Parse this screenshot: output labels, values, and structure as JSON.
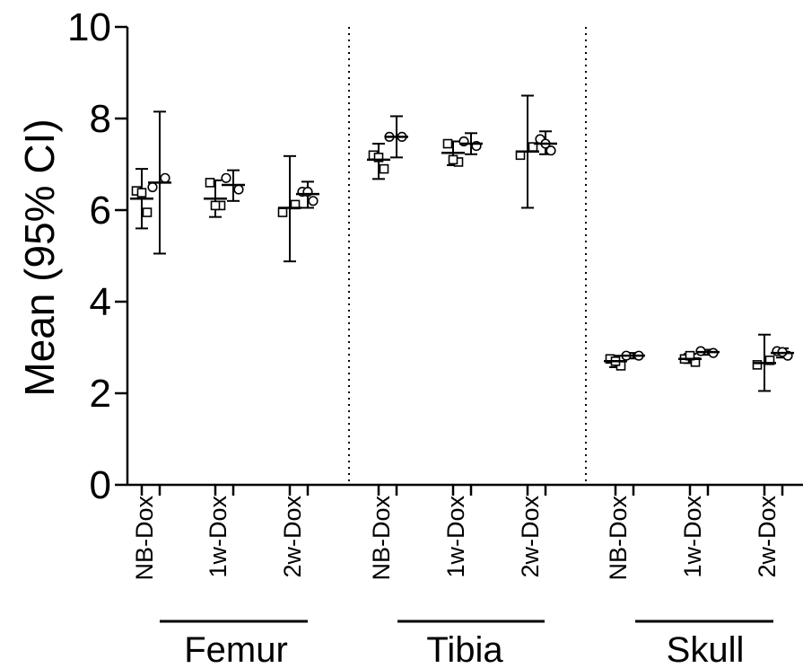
{
  "chart_data": {
    "type": "scatter",
    "ylabel": "Mean (95% CI)",
    "ylim": [
      0,
      10
    ],
    "yticks": [
      "0",
      "2",
      "4",
      "6",
      "8",
      "10"
    ],
    "bones": [
      "Femur",
      "Tibia",
      "Skull"
    ],
    "conditions": [
      "NB-Dox",
      "1w-Dox",
      "2w-Dox"
    ],
    "series": [
      {
        "bone": "Femur",
        "groups": [
          {
            "condition": "NB-Dox",
            "marker": "square",
            "mean": 6.25,
            "ci": [
              5.6,
              6.9
            ],
            "points": [
              6.42,
              5.95,
              6.38
            ]
          },
          {
            "condition": "NB-Dox",
            "marker": "circle",
            "mean": 6.6,
            "ci": [
              5.05,
              8.15
            ],
            "points": [
              6.5,
              6.7
            ]
          },
          {
            "condition": "1w-Dox",
            "marker": "square",
            "mean": 6.25,
            "ci": [
              5.85,
              6.65
            ],
            "points": [
              6.6,
              6.1,
              6.1
            ]
          },
          {
            "condition": "1w-Dox",
            "marker": "circle",
            "mean": 6.55,
            "ci": [
              6.2,
              6.87
            ],
            "points": [
              6.7,
              6.45
            ]
          },
          {
            "condition": "2w-Dox",
            "marker": "square",
            "mean": 6.05,
            "ci": [
              4.88,
              7.18
            ],
            "points": [
              5.95,
              6.12
            ]
          },
          {
            "condition": "2w-Dox",
            "marker": "circle",
            "mean": 6.35,
            "ci": [
              6.05,
              6.62
            ],
            "points": [
              6.4,
              6.2,
              6.4
            ]
          }
        ]
      },
      {
        "bone": "Tibia",
        "groups": [
          {
            "condition": "NB-Dox",
            "marker": "square",
            "mean": 7.1,
            "ci": [
              6.68,
              7.45
            ],
            "points": [
              7.2,
              6.9,
              7.15
            ]
          },
          {
            "condition": "NB-Dox",
            "marker": "circle",
            "mean": 7.6,
            "ci": [
              7.15,
              8.05
            ],
            "points": [
              7.6,
              7.6
            ]
          },
          {
            "condition": "1w-Dox",
            "marker": "square",
            "mean": 7.25,
            "ci": [
              6.98,
              7.5
            ],
            "points": [
              7.45,
              7.05,
              7.1
            ]
          },
          {
            "condition": "1w-Dox",
            "marker": "circle",
            "mean": 7.45,
            "ci": [
              7.22,
              7.68
            ],
            "points": [
              7.5,
              7.4
            ]
          },
          {
            "condition": "2w-Dox",
            "marker": "square",
            "mean": 7.28,
            "ci": [
              6.05,
              8.5
            ],
            "points": [
              7.2,
              7.38
            ]
          },
          {
            "condition": "2w-Dox",
            "marker": "circle",
            "mean": 7.45,
            "ci": [
              7.22,
              7.72
            ],
            "points": [
              7.55,
              7.3,
              7.45
            ]
          }
        ]
      },
      {
        "bone": "Skull",
        "groups": [
          {
            "condition": "NB-Dox",
            "marker": "square",
            "mean": 2.7,
            "ci": [
              2.57,
              2.82
            ],
            "points": [
              2.75,
              2.6,
              2.7
            ]
          },
          {
            "condition": "NB-Dox",
            "marker": "circle",
            "mean": 2.82,
            "ci": [
              2.76,
              2.88
            ],
            "points": [
              2.82,
              2.82
            ]
          },
          {
            "condition": "1w-Dox",
            "marker": "square",
            "mean": 2.75,
            "ci": [
              2.66,
              2.86
            ],
            "points": [
              2.75,
              2.68,
              2.82
            ]
          },
          {
            "condition": "1w-Dox",
            "marker": "circle",
            "mean": 2.9,
            "ci": [
              2.84,
              2.95
            ],
            "points": [
              2.92,
              2.88
            ]
          },
          {
            "condition": "2w-Dox",
            "marker": "square",
            "mean": 2.66,
            "ci": [
              2.05,
              3.28
            ],
            "points": [
              2.62,
              2.72
            ]
          },
          {
            "condition": "2w-Dox",
            "marker": "circle",
            "mean": 2.88,
            "ci": [
              2.78,
              2.98
            ],
            "points": [
              2.92,
              2.82,
              2.9
            ]
          }
        ]
      }
    ]
  }
}
